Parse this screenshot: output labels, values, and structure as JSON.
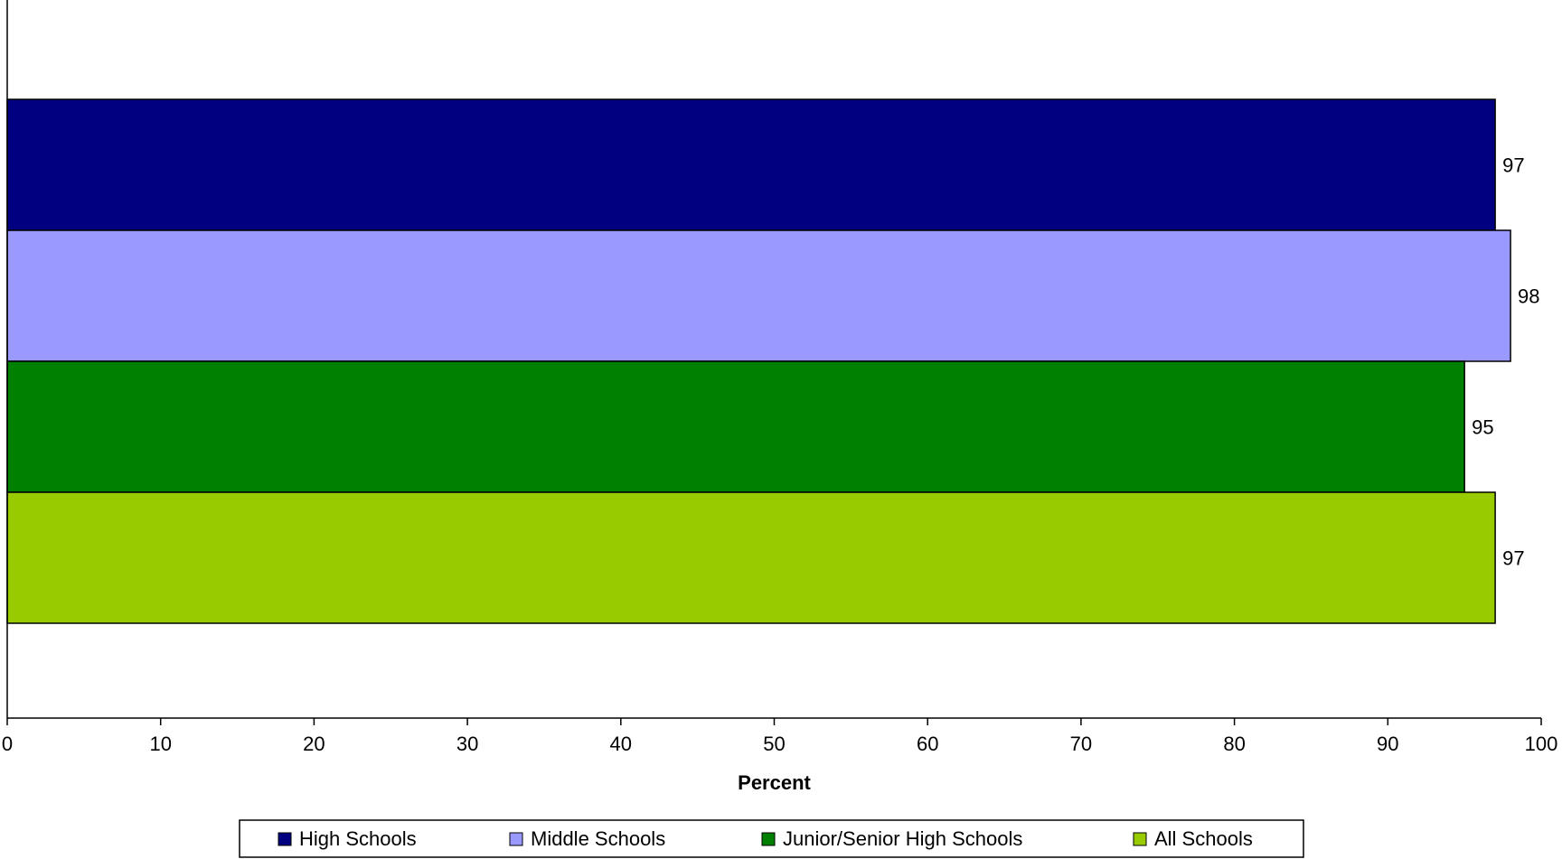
{
  "chart_data": {
    "type": "bar",
    "orientation": "horizontal",
    "title": "",
    "xlabel": "Percent",
    "ylabel": "",
    "xlim": [
      0,
      100
    ],
    "x_ticks": [
      0,
      10,
      20,
      30,
      40,
      50,
      60,
      70,
      80,
      90,
      100
    ],
    "grid": false,
    "legend_position": "bottom",
    "series": [
      {
        "name": "High Schools",
        "value": 97,
        "color": "#000080"
      },
      {
        "name": "Middle Schools",
        "value": 98,
        "color": "#9999FF"
      },
      {
        "name": "Junior/Senior High Schools",
        "value": 95,
        "color": "#008000"
      },
      {
        "name": "All Schools",
        "value": 97,
        "color": "#99CC00"
      }
    ]
  }
}
